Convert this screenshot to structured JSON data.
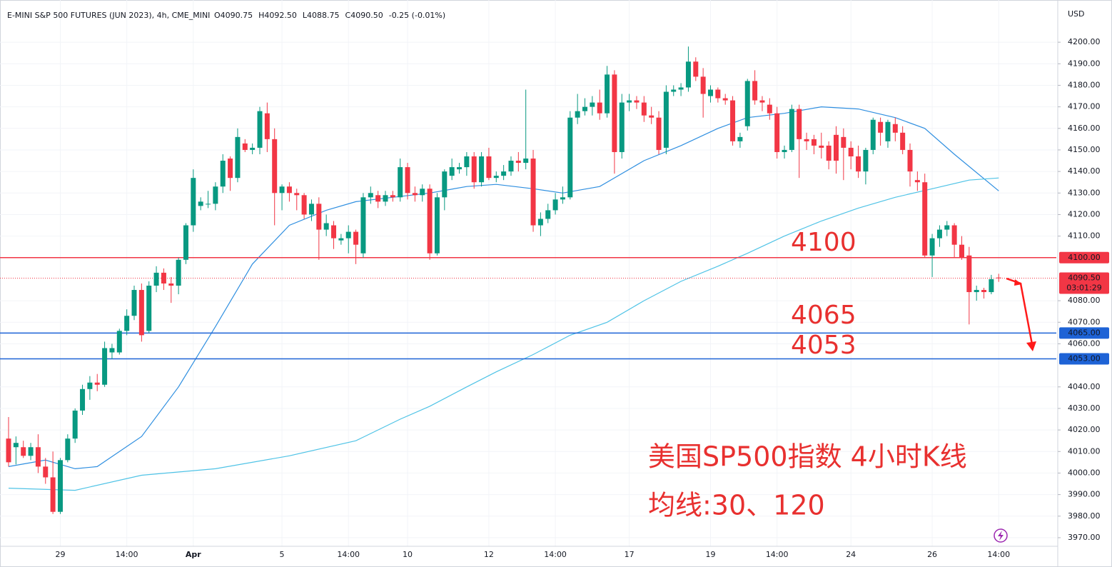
{
  "chart_data": {
    "type": "candlestick",
    "title": "E-MINI S&P 500 FUTURES (JUN 2023), 4h, CME_MINI",
    "ohlc_text": [
      "O4090.75",
      "H4092.50",
      "L4088.75",
      "C4090.50"
    ],
    "change_text": "-0.25 (-0.01%)",
    "currency": "USD",
    "up_color": "#089981",
    "down_color": "#f23645",
    "grid": true,
    "ylim": [
      3966,
      4219.6
    ],
    "xlim": [
      -1.16,
      141.8
    ],
    "yticks": [
      {
        "value": 4200,
        "label": "4200.00"
      },
      {
        "value": 4190,
        "label": "4190.00"
      },
      {
        "value": 4180,
        "label": "4180.00"
      },
      {
        "value": 4170,
        "label": "4170.00"
      },
      {
        "value": 4160,
        "label": "4160.00"
      },
      {
        "value": 4150,
        "label": "4150.00"
      },
      {
        "value": 4140,
        "label": "4140.00"
      },
      {
        "value": 4130,
        "label": "4130.00"
      },
      {
        "value": 4120,
        "label": "4120.00"
      },
      {
        "value": 4110,
        "label": "4110.00"
      },
      {
        "value": 4080,
        "label": "4080.00"
      },
      {
        "value": 4070,
        "label": "4070.00"
      },
      {
        "value": 4060,
        "label": "4060.00"
      },
      {
        "value": 4040,
        "label": "4040.00"
      },
      {
        "value": 4030,
        "label": "4030.00"
      },
      {
        "value": 4020,
        "label": "4020.00"
      },
      {
        "value": 4010,
        "label": "4010.00"
      },
      {
        "value": 4000,
        "label": "4000.00"
      },
      {
        "value": 3990,
        "label": "3990.00"
      },
      {
        "value": 3980,
        "label": "3980.00"
      },
      {
        "value": 3970,
        "label": "3970.00"
      }
    ],
    "xticks": [
      {
        "value": 7,
        "label": "29"
      },
      {
        "value": 16,
        "label": "14:00"
      },
      {
        "value": 25,
        "label": "Apr"
      },
      {
        "value": 37,
        "label": "5"
      },
      {
        "value": 46,
        "label": "14:00"
      },
      {
        "value": 54,
        "label": "10"
      },
      {
        "value": 65,
        "label": "12"
      },
      {
        "value": 74,
        "label": "14:00"
      },
      {
        "value": 84,
        "label": "17"
      },
      {
        "value": 95,
        "label": "19"
      },
      {
        "value": 104,
        "label": "14:00"
      },
      {
        "value": 114,
        "label": "24"
      },
      {
        "value": 125,
        "label": "26"
      },
      {
        "value": 134,
        "label": "14:00"
      }
    ],
    "ohlc": [
      [
        4016,
        4026,
        4003,
        4005
      ],
      [
        4012,
        4017,
        4004,
        4014
      ],
      [
        4012,
        4015,
        4007,
        4008
      ],
      [
        4008,
        4014,
        4006,
        4012
      ],
      [
        4012,
        4018,
        4000,
        4003
      ],
      [
        4003,
        4007,
        3995,
        3998
      ],
      [
        3998,
        4010,
        3981,
        3982
      ],
      [
        3982,
        4007,
        3981,
        4006
      ],
      [
        4006,
        4018,
        4005,
        4016
      ],
      [
        4016,
        4030,
        4014,
        4029
      ],
      [
        4029,
        4041,
        4027,
        4039
      ],
      [
        4039,
        4045,
        4034,
        4042
      ],
      [
        4042,
        4046,
        4038,
        4041
      ],
      [
        4041,
        4061,
        4040,
        4058
      ],
      [
        4056,
        4060,
        4053,
        4058
      ],
      [
        4056,
        4067,
        4055,
        4066
      ],
      [
        4066,
        4076,
        4064,
        4073
      ],
      [
        4073,
        4087,
        4071,
        4085
      ],
      [
        4085,
        4088,
        4061,
        4064
      ],
      [
        4066,
        4089,
        4065,
        4087
      ],
      [
        4087,
        4096,
        4084,
        4093
      ],
      [
        4093,
        4095,
        4085,
        4088
      ],
      [
        4088,
        4091,
        4079,
        4087
      ],
      [
        4087,
        4100,
        4083,
        4099
      ],
      [
        4099,
        4116,
        4097,
        4115
      ],
      [
        4115,
        4141,
        4112,
        4137
      ],
      [
        4124,
        4128,
        4122,
        4126
      ],
      [
        4125,
        4131,
        4123,
        4125
      ],
      [
        4125,
        4135,
        4122,
        4133
      ],
      [
        4133,
        4148,
        4130,
        4145
      ],
      [
        4146,
        4147,
        4131,
        4137
      ],
      [
        4137,
        4160,
        4135,
        4156
      ],
      [
        4153,
        4155,
        4149,
        4150
      ],
      [
        4150,
        4153,
        4148,
        4151
      ],
      [
        4151,
        4170,
        4148,
        4168
      ],
      [
        4167,
        4172,
        4149,
        4155
      ],
      [
        4155,
        4160,
        4115,
        4130
      ],
      [
        4130,
        4134,
        4122,
        4133
      ],
      [
        4133,
        4135,
        4126,
        4130
      ],
      [
        4130,
        4132,
        4122,
        4129
      ],
      [
        4129,
        4130,
        4118,
        4120
      ],
      [
        4120,
        4127,
        4117,
        4125
      ],
      [
        4125,
        4128,
        4099,
        4113
      ],
      [
        4113,
        4120,
        4110,
        4116
      ],
      [
        4115,
        4117,
        4104,
        4109
      ],
      [
        4108,
        4111,
        4106,
        4109
      ],
      [
        4109,
        4115,
        4102,
        4112
      ],
      [
        4112,
        4113,
        4097,
        4106
      ],
      [
        4102,
        4130,
        4100,
        4128
      ],
      [
        4128,
        4133,
        4125,
        4130
      ],
      [
        4129,
        4131,
        4123,
        4126
      ],
      [
        4126,
        4131,
        4124,
        4129
      ],
      [
        4129,
        4131,
        4126,
        4128
      ],
      [
        4128,
        4146,
        4126,
        4142
      ],
      [
        4142,
        4144,
        4127,
        4130
      ],
      [
        4130,
        4133,
        4126,
        4129
      ],
      [
        4129,
        4134,
        4126,
        4132
      ],
      [
        4132,
        4134,
        4099,
        4102
      ],
      [
        4102,
        4130,
        4101,
        4128
      ],
      [
        4128,
        4141,
        4122,
        4140
      ],
      [
        4138,
        4146,
        4136,
        4142
      ],
      [
        4141,
        4144,
        4139,
        4142
      ],
      [
        4142,
        4149,
        4138,
        4147
      ],
      [
        4147,
        4149,
        4132,
        4135
      ],
      [
        4135,
        4149,
        4133,
        4147
      ],
      [
        4147,
        4151,
        4136,
        4137
      ],
      [
        4137,
        4140,
        4135,
        4138
      ],
      [
        4138,
        4143,
        4136,
        4140
      ],
      [
        4140,
        4147,
        4138,
        4145
      ],
      [
        4145,
        4149,
        4140,
        4144
      ],
      [
        4144,
        4178,
        4141,
        4146
      ],
      [
        4146,
        4150,
        4112,
        4115
      ],
      [
        4115,
        4121,
        4110,
        4118
      ],
      [
        4118,
        4125,
        4116,
        4122
      ],
      [
        4122,
        4130,
        4120,
        4127
      ],
      [
        4127,
        4133,
        4125,
        4128
      ],
      [
        4128,
        4168,
        4127,
        4165
      ],
      [
        4165,
        4176,
        4162,
        4168
      ],
      [
        4168,
        4174,
        4166,
        4170
      ],
      [
        4170,
        4175,
        4166,
        4172
      ],
      [
        4172,
        4178,
        4164,
        4167
      ],
      [
        4167,
        4189,
        4165,
        4185
      ],
      [
        4185,
        4187,
        4139,
        4149
      ],
      [
        4149,
        4176,
        4146,
        4172
      ],
      [
        4172,
        4176,
        4168,
        4173
      ],
      [
        4173,
        4175,
        4169,
        4172
      ],
      [
        4172,
        4175,
        4163,
        4166
      ],
      [
        4166,
        4170,
        4162,
        4165
      ],
      [
        4165,
        4168,
        4148,
        4150
      ],
      [
        4151,
        4180,
        4148,
        4177
      ],
      [
        4177,
        4180,
        4175,
        4178
      ],
      [
        4178,
        4181,
        4175,
        4179
      ],
      [
        4179,
        4198,
        4177,
        4191
      ],
      [
        4191,
        4193,
        4182,
        4184
      ],
      [
        4184,
        4188,
        4165,
        4176
      ],
      [
        4175,
        4180,
        4172,
        4178
      ],
      [
        4178,
        4179,
        4172,
        4174
      ],
      [
        4174,
        4176,
        4171,
        4173
      ],
      [
        4173,
        4175,
        4152,
        4154
      ],
      [
        4154,
        4158,
        4151,
        4156
      ],
      [
        4161,
        4183,
        4159,
        4182
      ],
      [
        4182,
        4187,
        4171,
        4173
      ],
      [
        4173,
        4175,
        4168,
        4172
      ],
      [
        4171,
        4174,
        4164,
        4167
      ],
      [
        4167,
        4170,
        4146,
        4149
      ],
      [
        4149,
        4152,
        4146,
        4150
      ],
      [
        4150,
        4171,
        4149,
        4169
      ],
      [
        4169,
        4171,
        4137,
        4155
      ],
      [
        4155,
        4158,
        4150,
        4154
      ],
      [
        4155,
        4157,
        4148,
        4152
      ],
      [
        4152,
        4158,
        4146,
        4151
      ],
      [
        4152,
        4154,
        4141,
        4145
      ],
      [
        4157,
        4161,
        4139,
        4145
      ],
      [
        4156,
        4160,
        4136,
        4151
      ],
      [
        4151,
        4154,
        4141,
        4147
      ],
      [
        4147,
        4152,
        4137,
        4140
      ],
      [
        4140,
        4151,
        4134,
        4150
      ],
      [
        4150,
        4165,
        4148,
        4164
      ],
      [
        4163,
        4165,
        4152,
        4158
      ],
      [
        4154,
        4164,
        4151,
        4163
      ],
      [
        4162,
        4165,
        4154,
        4158
      ],
      [
        4158,
        4161,
        4148,
        4150
      ],
      [
        4150,
        4153,
        4133,
        4140
      ],
      [
        4136,
        4140,
        4131,
        4135
      ],
      [
        4135,
        4139,
        4100,
        4101
      ],
      [
        4101,
        4111,
        4091,
        4109
      ],
      [
        4109,
        4115,
        4105,
        4113
      ],
      [
        4113,
        4117,
        4110,
        4115
      ],
      [
        4115,
        4116,
        4100,
        4106
      ],
      [
        4106,
        4110,
        4099,
        4100
      ],
      [
        4101,
        4105,
        4069,
        4084
      ],
      [
        4084,
        4087,
        4080,
        4085
      ],
      [
        4085,
        4086,
        4081,
        4084
      ],
      [
        4084,
        4092,
        4083,
        4090
      ],
      [
        4090.75,
        4092.5,
        4088.75,
        4090.5
      ]
    ],
    "lines": [
      {
        "color": "#2f8fe0",
        "x": [
          0,
          5,
          9,
          12,
          18,
          23,
          28,
          33,
          38,
          43,
          47,
          52,
          57,
          62,
          66,
          71,
          75,
          80,
          86,
          91,
          96,
          100,
          105,
          110,
          115,
          120,
          124,
          128,
          134
        ],
        "values": [
          4003,
          4006,
          4002,
          4003,
          4017,
          4040,
          4068,
          4097,
          4115,
          4122,
          4126,
          4128,
          4130,
          4133,
          4134,
          4132,
          4130,
          4133,
          4145,
          4152,
          4160,
          4165,
          4167,
          4170,
          4169,
          4165,
          4160,
          4148,
          4131
        ]
      },
      {
        "color": "#4fc3e6",
        "x": [
          0,
          9,
          18,
          28,
          38,
          47,
          53,
          57,
          62,
          66,
          71,
          76,
          81,
          86,
          91,
          96,
          100,
          105,
          110,
          115,
          120,
          125,
          130,
          134
        ],
        "values": [
          3993,
          3992,
          3999,
          4002,
          4008,
          4015,
          4025,
          4031,
          4040,
          4047,
          4055,
          4064,
          4070,
          4080,
          4089,
          4096,
          4102,
          4110,
          4117,
          4123,
          4128,
          4132,
          4136,
          4137
        ]
      }
    ],
    "levels": [
      {
        "value": 4100,
        "label": "4100.00",
        "color": "#f23645",
        "annotation": "4100"
      },
      {
        "value": 4065,
        "label": "4065.00",
        "color": "#1e63d6",
        "annotation": "4065"
      },
      {
        "value": 4053,
        "label": "4053.00",
        "color": "#1e63d6",
        "annotation": "4053"
      }
    ],
    "last_price": {
      "value": 4090.5,
      "label": "4090.50",
      "countdown": "03:01:29",
      "color": "#f23645"
    },
    "annotations": [
      "美国SP500指数 4小时K线",
      "均线:30、120"
    ]
  }
}
